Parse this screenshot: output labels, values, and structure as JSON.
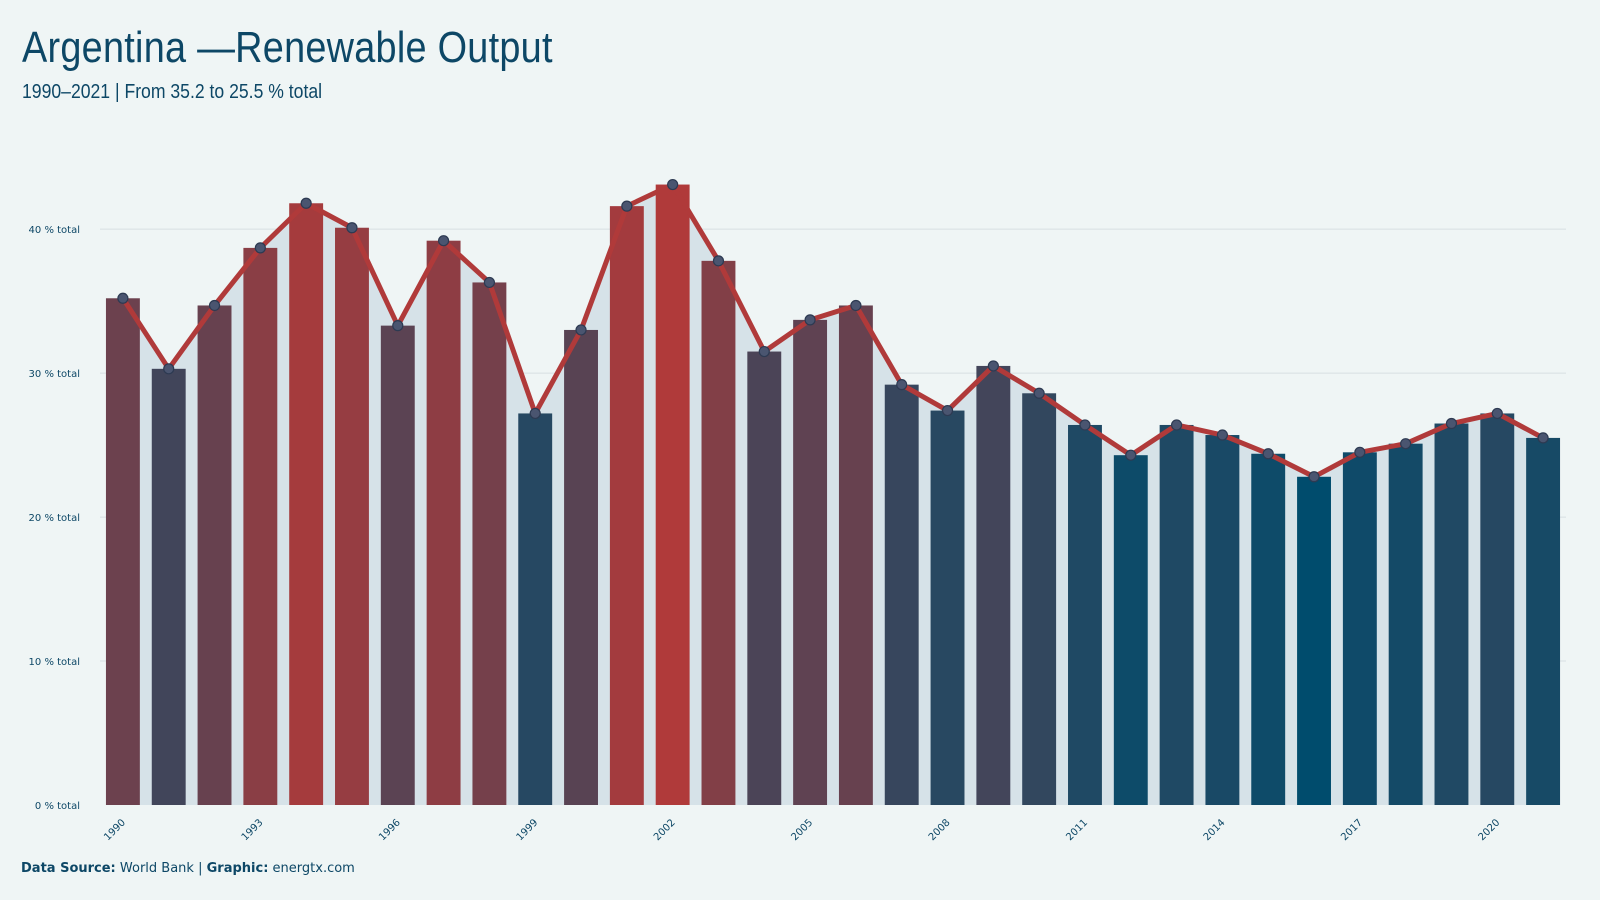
{
  "title": "Argentina —Renewable Output",
  "subtitle": "1990–2021 | From 35.2 to 25.5 % total",
  "footer": {
    "source_label": "Data Source:",
    "source_value": "World Bank",
    "separator": "|",
    "graphic_label": "Graphic:",
    "graphic_value": "energtx.com"
  },
  "colors": {
    "background": "#eff5f5",
    "high": "#b03a3a",
    "low": "#004c6d",
    "line": "#b03a3a",
    "area": "#d6e2e8",
    "grid": "#d7dfe2",
    "text": "#0d4766"
  },
  "chart_data": {
    "type": "bar",
    "overlay": "line",
    "x": [
      1990,
      1991,
      1992,
      1993,
      1994,
      1995,
      1996,
      1997,
      1998,
      1999,
      2000,
      2001,
      2002,
      2003,
      2004,
      2005,
      2006,
      2007,
      2008,
      2009,
      2010,
      2011,
      2012,
      2013,
      2014,
      2015,
      2016,
      2017,
      2018,
      2019,
      2020,
      2021
    ],
    "values": [
      35.2,
      30.3,
      34.7,
      38.7,
      41.8,
      40.1,
      33.3,
      39.2,
      36.3,
      27.2,
      33.0,
      41.6,
      43.1,
      37.8,
      31.5,
      33.7,
      34.7,
      29.2,
      27.4,
      30.5,
      28.6,
      26.4,
      24.3,
      26.4,
      25.7,
      24.4,
      22.8,
      24.5,
      25.1,
      26.5,
      27.2,
      25.5
    ],
    "x_tick_labels": [
      "1990",
      "1993",
      "1996",
      "1999",
      "2002",
      "2005",
      "2008",
      "2011",
      "2014",
      "2017",
      "2020"
    ],
    "y_ticks": [
      0,
      10,
      20,
      30,
      40
    ],
    "y_tick_labels": [
      "0 % total",
      "10 % total",
      "20 % total",
      "30 % total",
      "40 % total"
    ],
    "ylim": [
      0,
      45.5
    ],
    "xlabel": "",
    "ylabel": "",
    "grid": true
  }
}
